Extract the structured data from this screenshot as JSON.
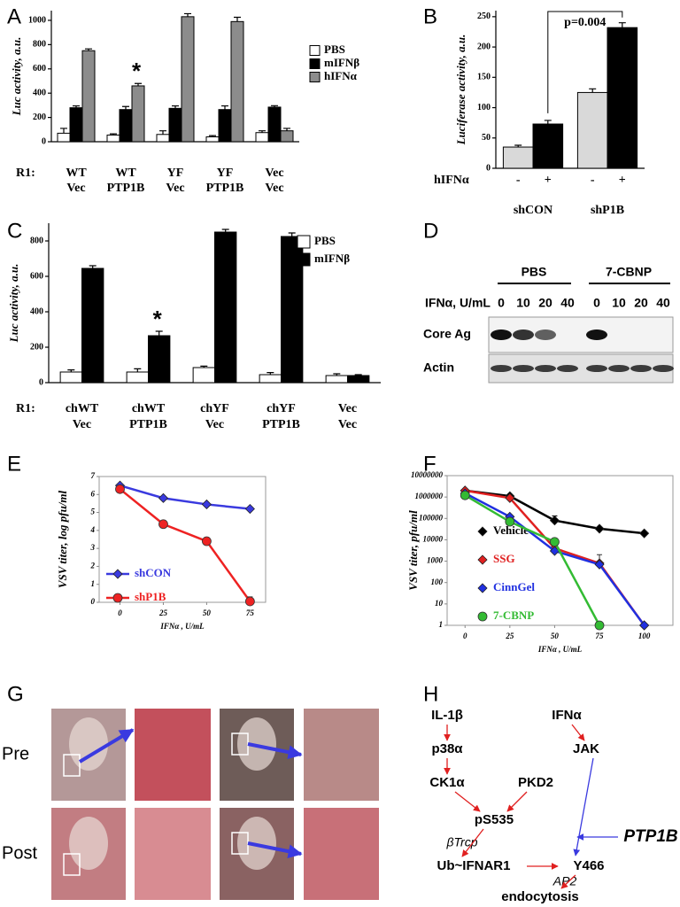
{
  "chart_data": [
    {
      "type": "bar",
      "label": "A",
      "ylabel": "Luc activity, a.u.",
      "row_label": "R1:",
      "categories": [
        [
          "WT",
          "Vec"
        ],
        [
          "WT",
          "PTP1B"
        ],
        [
          "YF",
          "Vec"
        ],
        [
          "YF",
          "PTP1B"
        ],
        [
          "Vec",
          "Vec"
        ]
      ],
      "series": [
        {
          "name": "PBS",
          "color": "#ffffff",
          "values": [
            70,
            55,
            60,
            40,
            75
          ],
          "errors": [
            40,
            10,
            30,
            10,
            15
          ]
        },
        {
          "name": "mIFNβ",
          "color": "#000000",
          "values": [
            280,
            265,
            275,
            265,
            285
          ],
          "errors": [
            15,
            25,
            20,
            30,
            12
          ]
        },
        {
          "name": "hIFNα",
          "color": "#8c8c8c",
          "values": [
            750,
            460,
            1030,
            990,
            90
          ],
          "errors": [
            15,
            20,
            25,
            35,
            20
          ]
        }
      ],
      "ylim": [
        0,
        1080
      ],
      "yticks": [
        0,
        200,
        400,
        600,
        800,
        1000
      ],
      "annotation": "*"
    },
    {
      "type": "bar",
      "label": "B",
      "ylabel": "Luciferase activity, a.u.",
      "factor_label": "hIFNα",
      "categories": [
        "shCON",
        "shP1B"
      ],
      "series": [
        {
          "name": "-",
          "color": "#d9d9d9",
          "values": [
            35,
            125
          ],
          "errors": [
            3,
            6
          ]
        },
        {
          "name": "+",
          "color": "#000000",
          "values": [
            73,
            232
          ],
          "errors": [
            6,
            8
          ]
        }
      ],
      "ylim": [
        0,
        260
      ],
      "yticks": [
        0,
        50,
        100,
        150,
        200,
        250
      ],
      "annotation": "p=0.004"
    },
    {
      "type": "bar",
      "label": "C",
      "ylabel": "Luc activity, a.u.",
      "row_label": "R1:",
      "categories": [
        [
          "chWT",
          "Vec"
        ],
        [
          "chWT",
          "PTP1B"
        ],
        [
          "chYF",
          "Vec"
        ],
        [
          "chYF",
          "PTP1B"
        ],
        [
          "Vec",
          "Vec"
        ]
      ],
      "series": [
        {
          "name": "PBS",
          "color": "#ffffff",
          "values": [
            60,
            60,
            85,
            45,
            40
          ],
          "errors": [
            12,
            18,
            8,
            12,
            10
          ]
        },
        {
          "name": "mIFNβ",
          "color": "#000000",
          "values": [
            645,
            265,
            850,
            825,
            40
          ],
          "errors": [
            15,
            25,
            15,
            20,
            5
          ]
        }
      ],
      "ylim": [
        0,
        900
      ],
      "yticks": [
        0,
        200,
        400,
        600,
        800
      ],
      "annotation": "*"
    },
    {
      "type": "line",
      "label": "E",
      "xlabel": "IFNα , U/mL",
      "ylabel": "VSV titer, log pfu/ml",
      "x": [
        0,
        25,
        50,
        75
      ],
      "xlim": [
        -12,
        84
      ],
      "xticks": [
        0,
        25,
        50,
        75
      ],
      "ylim": [
        0,
        7
      ],
      "yticks": [
        0,
        1,
        2,
        3,
        4,
        5,
        6,
        7
      ],
      "series": [
        {
          "name": "shCON",
          "color": "#3a3adf",
          "marker": "diamond",
          "values": [
            6.5,
            5.8,
            5.45,
            5.2
          ]
        },
        {
          "name": "shP1B",
          "color": "#ee2222",
          "marker": "circle",
          "values": [
            6.3,
            4.35,
            3.4,
            0.05
          ],
          "errors": [
            null,
            null,
            0.2,
            0.25
          ]
        }
      ]
    },
    {
      "type": "line",
      "label": "F",
      "xlabel": "IFNα , U/mL",
      "ylabel": "VSV titer, pfu/ml",
      "log_y": true,
      "x": [
        0,
        25,
        50,
        75,
        100
      ],
      "xlim": [
        -10,
        116
      ],
      "xticks": [
        0,
        25,
        50,
        75,
        100
      ],
      "ylim": [
        1,
        10000000
      ],
      "yticks": [
        1,
        10,
        100,
        1000,
        10000,
        100000,
        1000000,
        10000000
      ],
      "series": [
        {
          "name": "Vehicle",
          "color": "#000000",
          "marker": "diamond",
          "values": [
            2000000,
            1100000,
            80000,
            33000,
            20000
          ],
          "errors": [
            null,
            null,
            50000,
            null,
            null
          ]
        },
        {
          "name": "SSG",
          "color": "#e02020",
          "marker": "diamond",
          "values": [
            2000000,
            900000,
            4000,
            800,
            1
          ],
          "errors": [
            null,
            null,
            null,
            1200,
            null
          ]
        },
        {
          "name": "CinnGel",
          "color": "#2030e0",
          "marker": "diamond",
          "values": [
            1500000,
            120000,
            3000,
            700,
            1
          ]
        },
        {
          "name": "7-CBNP",
          "color": "#33bb33",
          "marker": "circle",
          "values": [
            1200000,
            70000,
            8000,
            1,
            null
          ]
        }
      ]
    }
  ],
  "blot": {
    "label": "D",
    "groups": [
      "PBS",
      "7-CBNP"
    ],
    "dose_label": "IFNα, U/mL",
    "doses": [
      "0",
      "10",
      "20",
      "40",
      "0",
      "10",
      "20",
      "40"
    ],
    "rows": [
      "Core Ag",
      "Actin"
    ]
  },
  "photos": {
    "label": "G",
    "rows": [
      "Pre",
      "Post"
    ]
  },
  "pathway": {
    "label": "H",
    "nodes": [
      "IL-1β",
      "p38α",
      "CK1α",
      "pS535",
      "βTrcp",
      "Ub~IFNAR1",
      "IFNα",
      "JAK",
      "PKD2",
      "Y466",
      "PTP1B",
      "AP2",
      "endocytosis"
    ]
  }
}
